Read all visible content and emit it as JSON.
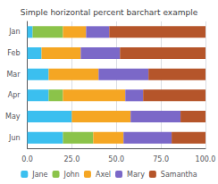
{
  "chart_data": {
    "type": "bar",
    "title": "Simple horizontal percent barchart example",
    "orientation": "horizontal",
    "stacked": true,
    "categories": [
      "Jun",
      "May",
      "Apr",
      "Mar",
      "Feb",
      "Jan"
    ],
    "series": [
      {
        "name": "Jane",
        "color": "#3bbfef",
        "values": [
          20,
          25,
          12,
          12,
          8,
          3
        ]
      },
      {
        "name": "John",
        "color": "#8bc34a",
        "values": [
          17,
          0,
          8,
          0,
          0,
          17
        ]
      },
      {
        "name": "Axel",
        "color": "#f5a623",
        "values": [
          17,
          33,
          35,
          28,
          22,
          13
        ]
      },
      {
        "name": "Mary",
        "color": "#7b68c8",
        "values": [
          27,
          28,
          10,
          28,
          22,
          13
        ]
      },
      {
        "name": "Samantha",
        "color": "#b5552a",
        "values": [
          19,
          14,
          35,
          32,
          48,
          54
        ]
      }
    ],
    "xlim": [
      0,
      100
    ],
    "xticks": [
      {
        "value": 0,
        "label": "0.0"
      },
      {
        "value": 25,
        "label": "25.0"
      },
      {
        "value": 50,
        "label": "50.0"
      },
      {
        "value": 75,
        "label": "75.0"
      },
      {
        "value": 100,
        "label": "100.0"
      }
    ],
    "grid": true,
    "legend": "bottom"
  }
}
